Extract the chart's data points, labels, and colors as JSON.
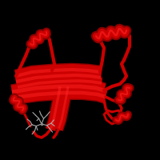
{
  "background_color": "#000000",
  "protein_color": "#cc0000",
  "protein_color_dark": "#880000",
  "protein_color_light": "#ff2222",
  "ligand_color": "#aaaaaa",
  "figure_size": [
    2.0,
    2.0
  ],
  "dpi": 100
}
